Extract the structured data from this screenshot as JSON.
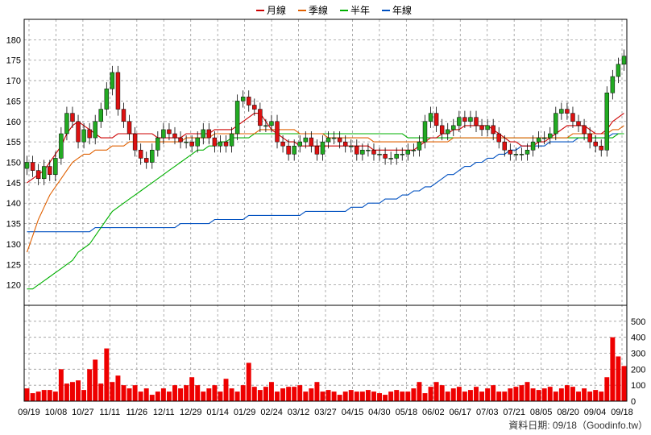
{
  "chart_data": {
    "type": "candlestick",
    "legend": [
      {
        "label": "月線",
        "color": "#cc0000"
      },
      {
        "label": "季線",
        "color": "#e06000"
      },
      {
        "label": "半年",
        "color": "#00b000"
      },
      {
        "label": "年線",
        "color": "#0050c0"
      }
    ],
    "price_axis": {
      "ylim": [
        115,
        185
      ],
      "ticks": [
        120,
        125,
        130,
        135,
        140,
        145,
        150,
        155,
        160,
        165,
        170,
        175,
        180
      ],
      "position": "left"
    },
    "volume_axis": {
      "ylim": [
        0,
        600
      ],
      "ticks": [
        0,
        100,
        200,
        300,
        400,
        500
      ],
      "position": "right"
    },
    "x_ticks": [
      "09/19",
      "10/08",
      "10/27",
      "11/11",
      "11/26",
      "12/11",
      "12/29",
      "01/14",
      "01/29",
      "02/24",
      "03/12",
      "03/27",
      "04/15",
      "04/30",
      "05/18",
      "06/02",
      "06/17",
      "07/03",
      "07/21",
      "08/05",
      "08/20",
      "09/04",
      "09/18"
    ],
    "closes": [
      150,
      148,
      146,
      149,
      147,
      151,
      157,
      162,
      160,
      155,
      158,
      156,
      160,
      163,
      168,
      172,
      163,
      160,
      157,
      153,
      151,
      150,
      153,
      156,
      158,
      157,
      156,
      155,
      155,
      154,
      156,
      158,
      156,
      154,
      155,
      154,
      157,
      165,
      166,
      164,
      163,
      159,
      159,
      160,
      155,
      154,
      152,
      154,
      155,
      156,
      154,
      152,
      155,
      156,
      156,
      155,
      154,
      154,
      152,
      153,
      153,
      152,
      152,
      151,
      151,
      152,
      152,
      153,
      153,
      155,
      160,
      162,
      159,
      157,
      158,
      159,
      161,
      160,
      161,
      159,
      158,
      159,
      157,
      155,
      153,
      152,
      152,
      152,
      153,
      155,
      156,
      156,
      157,
      162,
      163,
      162,
      160,
      159,
      157,
      155,
      154,
      153,
      167,
      171,
      174,
      176
    ],
    "month_line": [
      145,
      146,
      147,
      148,
      150,
      152,
      154,
      157,
      159,
      160,
      159,
      158,
      157,
      156,
      156,
      156,
      157,
      157,
      157,
      157,
      157,
      157,
      157,
      156,
      156,
      156,
      156,
      156,
      157,
      157,
      157,
      157,
      157,
      158,
      158,
      158,
      158,
      159,
      160,
      161,
      162,
      162,
      160,
      158,
      157,
      156,
      155,
      155,
      154,
      154,
      154,
      154,
      154,
      154,
      154,
      154,
      154,
      154,
      154,
      154,
      154,
      153,
      153,
      153,
      153,
      153,
      153,
      153,
      153,
      154,
      155,
      156,
      156,
      157,
      157,
      158,
      158,
      159,
      159,
      159,
      159,
      159,
      158,
      157,
      156,
      155,
      155,
      154,
      154,
      154,
      155,
      155,
      156,
      157,
      158,
      159,
      159,
      159,
      159,
      158,
      157,
      157,
      158,
      160,
      161,
      162
    ],
    "quarter_line": [
      128,
      132,
      136,
      139,
      142,
      144,
      146,
      148,
      150,
      151,
      152,
      152,
      153,
      153,
      153,
      154,
      154,
      154,
      155,
      155,
      155,
      155,
      155,
      155,
      155,
      155,
      155,
      155,
      156,
      156,
      156,
      156,
      156,
      157,
      157,
      157,
      157,
      157,
      157,
      157,
      157,
      158,
      158,
      158,
      158,
      158,
      158,
      158,
      157,
      157,
      157,
      157,
      157,
      156,
      156,
      156,
      156,
      156,
      156,
      156,
      156,
      155,
      155,
      155,
      155,
      155,
      155,
      155,
      155,
      155,
      155,
      155,
      155,
      155,
      155,
      156,
      156,
      156,
      156,
      156,
      156,
      156,
      156,
      156,
      156,
      156,
      156,
      156,
      156,
      156,
      156,
      156,
      156,
      156,
      156,
      156,
      157,
      157,
      157,
      157,
      157,
      157,
      157,
      158,
      158,
      159
    ],
    "half_line": [
      119,
      119,
      120,
      121,
      122,
      123,
      124,
      125,
      126,
      128,
      129,
      130,
      132,
      134,
      136,
      138,
      139,
      140,
      141,
      142,
      143,
      144,
      145,
      146,
      147,
      148,
      149,
      150,
      151,
      152,
      153,
      153,
      154,
      154,
      155,
      155,
      156,
      156,
      156,
      156,
      157,
      157,
      157,
      157,
      157,
      157,
      157,
      157,
      157,
      157,
      157,
      157,
      157,
      157,
      157,
      157,
      157,
      157,
      157,
      157,
      157,
      157,
      157,
      157,
      157,
      157,
      157,
      156,
      156,
      156,
      156,
      156,
      156,
      156,
      156,
      156,
      156,
      156,
      156,
      156,
      156,
      156,
      156,
      156,
      156,
      156,
      156,
      156,
      156,
      156,
      156,
      156,
      156,
      156,
      156,
      156,
      156,
      156,
      156,
      156,
      156,
      156,
      156,
      156,
      157,
      157
    ],
    "year_line": [
      133,
      133,
      133,
      133,
      133,
      133,
      133,
      133,
      133,
      133,
      133,
      133,
      134,
      134,
      134,
      134,
      134,
      134,
      134,
      134,
      134,
      134,
      134,
      134,
      134,
      134,
      134,
      135,
      135,
      135,
      135,
      135,
      135,
      136,
      136,
      136,
      136,
      136,
      136,
      137,
      137,
      137,
      137,
      137,
      137,
      137,
      137,
      137,
      137,
      138,
      138,
      138,
      138,
      138,
      138,
      138,
      138,
      139,
      139,
      139,
      140,
      140,
      140,
      141,
      141,
      141,
      142,
      142,
      143,
      143,
      144,
      144,
      145,
      146,
      147,
      147,
      148,
      149,
      149,
      150,
      150,
      151,
      151,
      152,
      152,
      153,
      153,
      154,
      154,
      154,
      154,
      154,
      155,
      155,
      155,
      155,
      155,
      156,
      156,
      156,
      156,
      156,
      156,
      157,
      157,
      157
    ],
    "volumes": [
      80,
      50,
      60,
      70,
      70,
      60,
      200,
      110,
      120,
      130,
      70,
      200,
      260,
      110,
      330,
      120,
      160,
      100,
      80,
      100,
      60,
      80,
      40,
      60,
      80,
      60,
      100,
      80,
      100,
      150,
      100,
      60,
      80,
      100,
      60,
      140,
      80,
      60,
      100,
      240,
      90,
      70,
      90,
      120,
      60,
      80,
      90,
      90,
      100,
      60,
      80,
      120,
      60,
      70,
      60,
      40,
      60,
      70,
      60,
      60,
      70,
      60,
      50,
      40,
      60,
      70,
      60,
      60,
      80,
      120,
      50,
      90,
      120,
      100,
      60,
      80,
      90,
      60,
      70,
      90,
      60,
      80,
      100,
      60,
      60,
      80,
      90,
      100,
      120,
      80,
      70,
      80,
      90,
      60,
      80,
      100,
      90,
      60,
      80,
      60,
      70,
      60,
      150,
      400,
      280,
      220
    ]
  },
  "credit": "資料日期: 09/18（Goodinfo.tw）"
}
